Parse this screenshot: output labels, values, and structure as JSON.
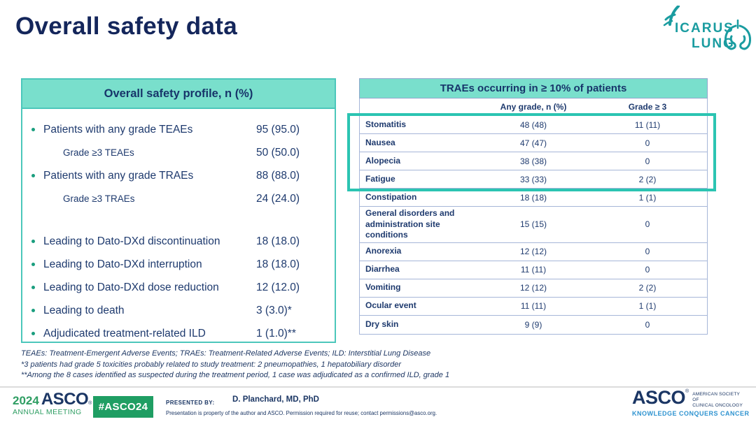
{
  "title": "Overall safety data",
  "logo": {
    "name_line1": "ICARUS",
    "name_line2": "LUNG"
  },
  "left_panel": {
    "header": "Overall safety profile, n (%)",
    "rows": [
      {
        "label": "Patients with any grade TEAEs",
        "value": "95 (95.0)",
        "bullet": true
      },
      {
        "label": "Grade  ≥3 TEAEs",
        "value": "50 (50.0)",
        "indent": true
      },
      {
        "label": "Patients with any grade TRAEs",
        "value": "88 (88.0)",
        "bullet": true
      },
      {
        "label": "Grade ≥3 TRAEs",
        "value": "24 (24.0)",
        "indent": true
      },
      {
        "spacer": true
      },
      {
        "label": "Leading to Dato-DXd discontinuation",
        "value": "18 (18.0)",
        "bullet": true
      },
      {
        "label": "Leading to Dato-DXd interruption",
        "value": "18 (18.0)",
        "bullet": true
      },
      {
        "label": "Leading to Dato-DXd dose reduction",
        "value": "12 (12.0)",
        "bullet": true
      },
      {
        "label": "Leading to death",
        "value": "3 (3.0)*",
        "bullet": true
      },
      {
        "label": "Adjudicated treatment-related ILD",
        "value": "1 (1.0)**",
        "bullet": true
      }
    ]
  },
  "right_table": {
    "header": "TRAEs occurring in ≥ 10% of patients",
    "columns": [
      "",
      "Any grade, n (%)",
      "Grade ≥ 3"
    ],
    "rows": [
      {
        "label": "Stomatitis",
        "any_grade": "48 (48)",
        "grade3": "11 (11)",
        "highlighted": true
      },
      {
        "label": "Nausea",
        "any_grade": "47 (47)",
        "grade3": "0",
        "highlighted": true
      },
      {
        "label": "Alopecia",
        "any_grade": "38 (38)",
        "grade3": "0",
        "highlighted": true
      },
      {
        "label": "Fatigue",
        "any_grade": "33 (33)",
        "grade3": "2 (2)",
        "highlighted": true
      },
      {
        "label": "Constipation",
        "any_grade": "18 (18)",
        "grade3": "1 (1)"
      },
      {
        "label": "General disorders and administration site conditions",
        "any_grade": "15 (15)",
        "grade3": "0"
      },
      {
        "label": "Anorexia",
        "any_grade": "12 (12)",
        "grade3": "0"
      },
      {
        "label": "Diarrhea",
        "any_grade": "11 (11)",
        "grade3": "0"
      },
      {
        "label": "Vomiting",
        "any_grade": "12 (12)",
        "grade3": "2 (2)"
      },
      {
        "label": "Ocular event",
        "any_grade": "11 (11)",
        "grade3": "1 (1)"
      },
      {
        "label": "Dry skin",
        "any_grade": "9 (9)",
        "grade3": "0"
      }
    ]
  },
  "footnotes": [
    "TEAEs: Treatment-Emergent Adverse Events; TRAEs: Treatment-Related Adverse Events; ILD: Interstitial Lung Disease",
    "*3 patients had grade 5 toxicities probably related to study treatment: 2 pneumopathies, 1 hepatobiliary disorder",
    "**Among the 8 cases identified as suspected during the treatment period, 1 case was adjudicated as a confirmed ILD, grade 1"
  ],
  "footer": {
    "meeting_year": "2024",
    "meeting_org": "ASCO",
    "meeting_name": "ANNUAL MEETING",
    "hashtag": "#ASCO24",
    "presented_by_label": "PRESENTED BY:",
    "presenter": "D. Planchard, MD, PhD",
    "disclaimer": "Presentation is property of the author and ASCO. Permission required for reuse; contact permissions@asco.org.",
    "asco_logo": {
      "name": "ASCO",
      "society_line1": "AMERICAN SOCIETY OF",
      "society_line2": "CLINICAL ONCOLOGY",
      "tagline": "KNOWLEDGE CONQUERS CANCER"
    }
  },
  "colors": {
    "teal_header": "#79DFCC",
    "teal_highlight": "#2BC4B2",
    "navy_text": "#1E3A6E",
    "asco_green": "#1F9E63",
    "icarus_teal": "#1A9CA0"
  }
}
